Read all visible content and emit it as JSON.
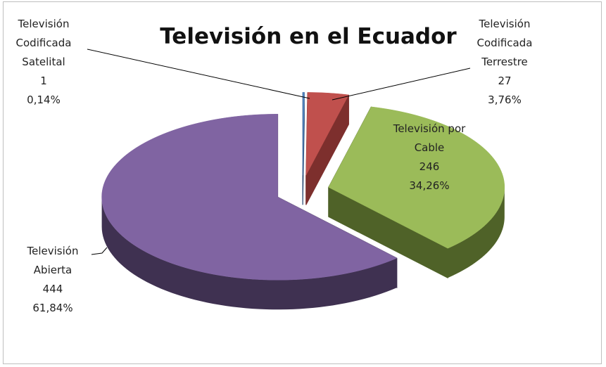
{
  "chart_data": {
    "type": "pie",
    "title": "Televisión en el Ecuador",
    "categories": [
      "Televisión Codificada Satelital",
      "Televisión Codificada Terrestre",
      "Televisión por Cable",
      "Televisión Abierta"
    ],
    "values": [
      1,
      27,
      246,
      444
    ],
    "percent_labels": [
      "0,14%",
      "3,76%",
      "34,26%",
      "61,84%"
    ],
    "colors": [
      "#4f81bd",
      "#c0504d",
      "#9bbb59",
      "#8064a2"
    ],
    "side_colors": [
      "#2c4d75",
      "#7d2f2d",
      "#4f6228",
      "#3f3151"
    ]
  }
}
